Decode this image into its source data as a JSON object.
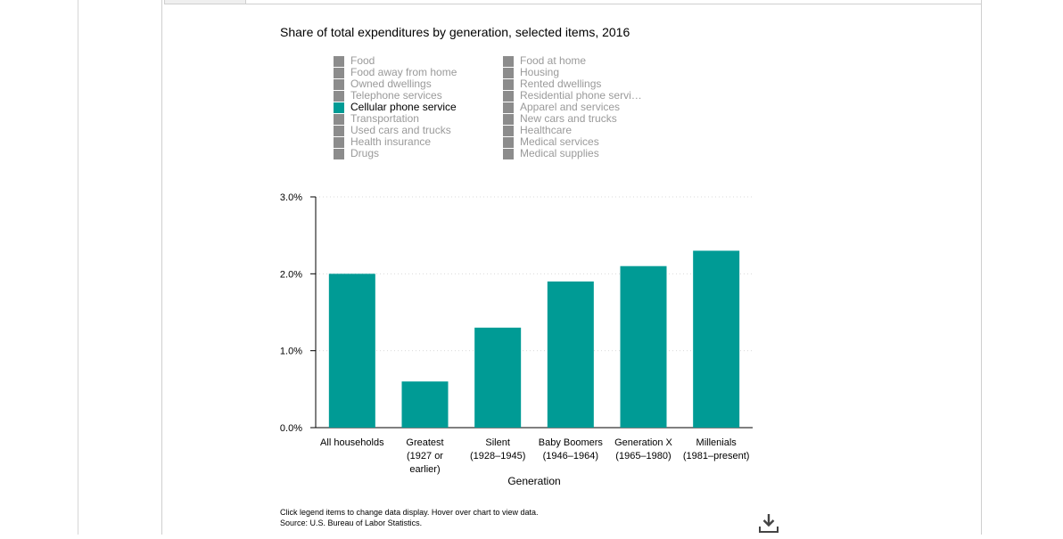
{
  "colors": {
    "bar": "#009b95",
    "legend_inactive": "#8c8c8c",
    "legend_active": "#009b95",
    "axis": "#000000",
    "grid": "#d9d9d9"
  },
  "legend": {
    "column_1": [
      {
        "label": "Food",
        "active": false
      },
      {
        "label": "Food away from home",
        "active": false
      },
      {
        "label": "Owned dwellings",
        "active": false
      },
      {
        "label": "Telephone services",
        "active": false
      },
      {
        "label": "Cellular phone service",
        "active": true
      },
      {
        "label": "Transportation",
        "active": false
      },
      {
        "label": "Used cars and trucks",
        "active": false
      },
      {
        "label": "Health insurance",
        "active": false
      },
      {
        "label": "Drugs",
        "active": false
      }
    ],
    "column_2": [
      {
        "label": "Food at home",
        "active": false
      },
      {
        "label": "Housing",
        "active": false
      },
      {
        "label": "Rented dwellings",
        "active": false
      },
      {
        "label": "Residential phone servi…",
        "active": false
      },
      {
        "label": "Apparel and services",
        "active": false
      },
      {
        "label": "New cars and trucks",
        "active": false
      },
      {
        "label": "Healthcare",
        "active": false
      },
      {
        "label": "Medical services",
        "active": false
      },
      {
        "label": "Medical supplies",
        "active": false
      }
    ]
  },
  "chart_data": {
    "type": "bar",
    "title": "Share of total expenditures by generation, selected items, 2016",
    "xlabel": "Generation",
    "ylabel": "",
    "ylim": [
      0,
      3
    ],
    "y_ticks": [
      {
        "value": 0,
        "label": "0.0%"
      },
      {
        "value": 1,
        "label": "1.0%"
      },
      {
        "value": 2,
        "label": "2.0%"
      },
      {
        "value": 3,
        "label": "3.0%"
      }
    ],
    "categories": [
      [
        "All households"
      ],
      [
        "Greatest",
        "(1927 or",
        "earlier)"
      ],
      [
        "Silent",
        "(1928–1945)"
      ],
      [
        "Baby Boomers",
        "(1946–1964)"
      ],
      [
        "Generation X",
        "(1965–1980)"
      ],
      [
        "Millenials",
        "(1981–present)"
      ]
    ],
    "series": [
      {
        "name": "Cellular phone service",
        "values": [
          2.0,
          0.6,
          1.3,
          1.9,
          2.1,
          2.3
        ]
      }
    ],
    "grid": true,
    "legend_placement": "top"
  },
  "footnote": {
    "line1": "Click legend items to change data display. Hover over chart to view data.",
    "line2": "Source: U.S. Bureau of Labor Statistics."
  },
  "icons": {
    "download": "download-icon"
  }
}
